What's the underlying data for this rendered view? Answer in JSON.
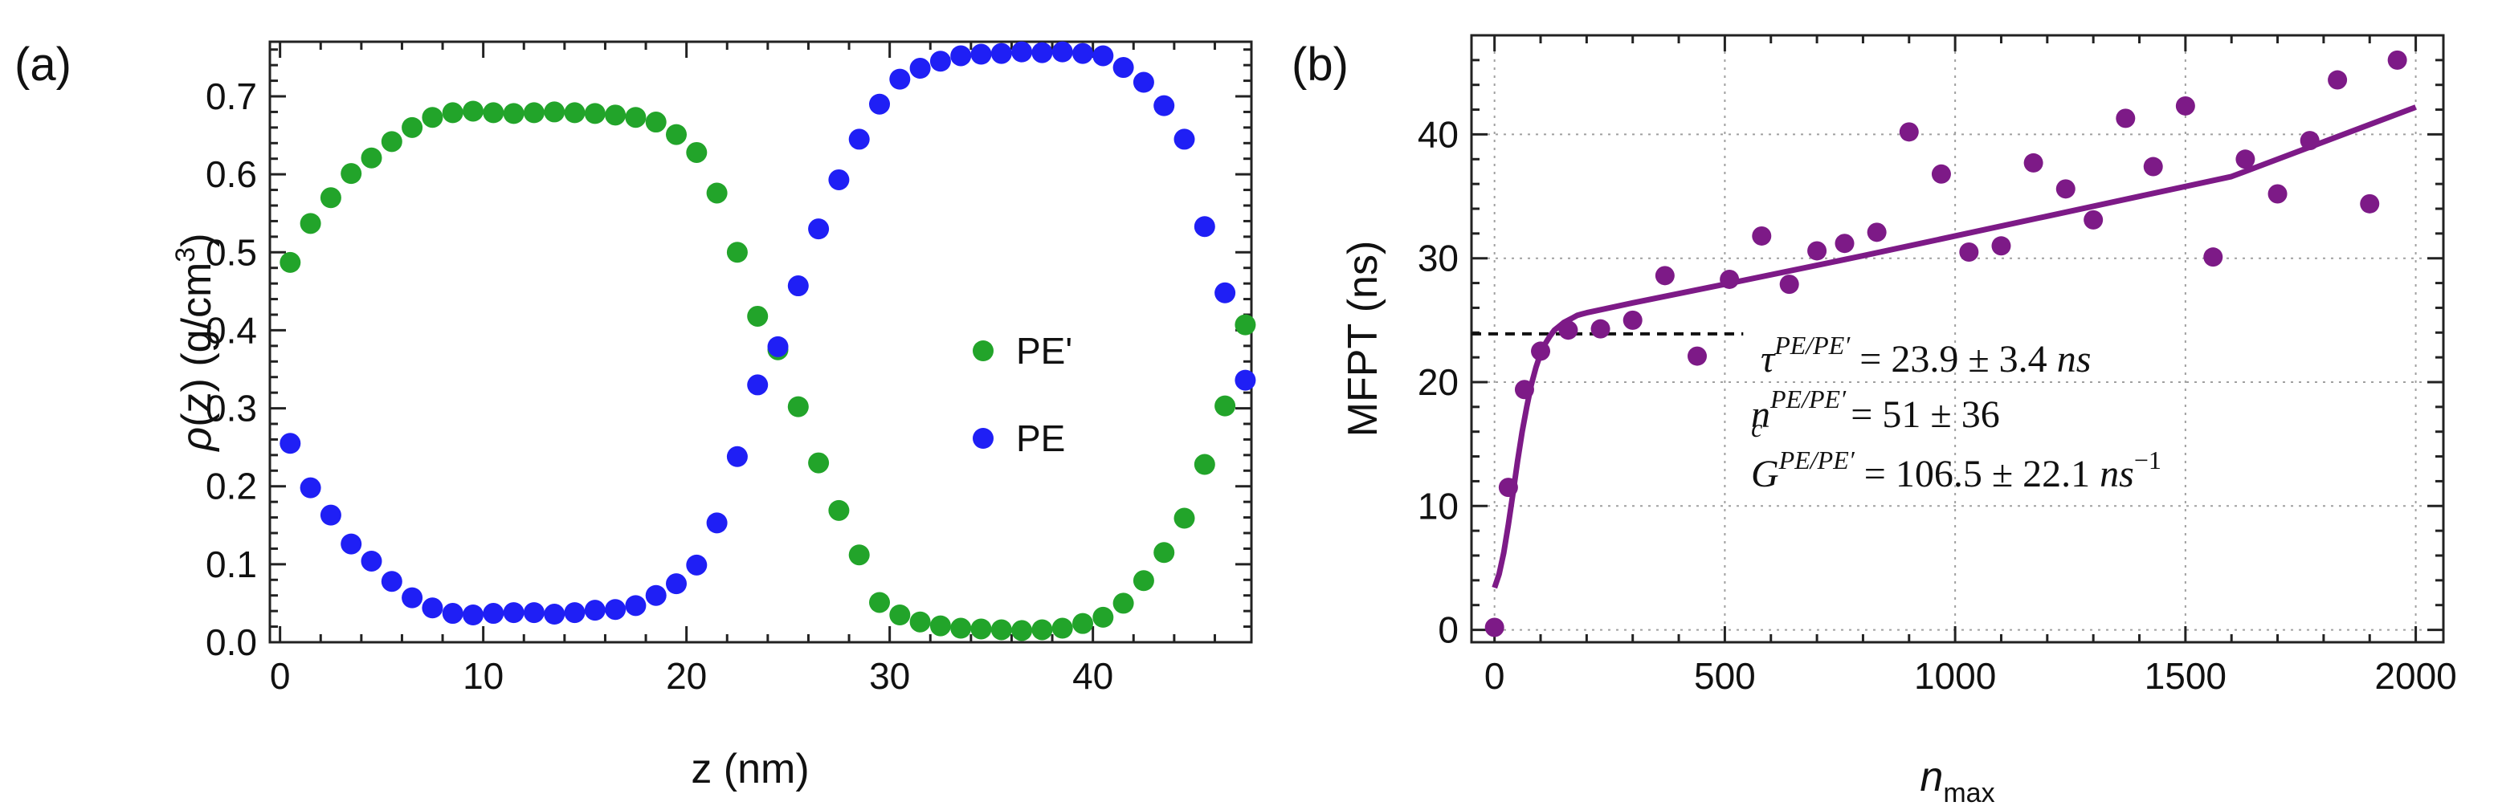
{
  "panels": {
    "a_label": "(a)",
    "b_label": "(b)"
  },
  "colors": {
    "green": "#22a42a",
    "blue": "#1f1ff5",
    "purple": "#7d1a87",
    "axis": "#222222",
    "grid": "#a0a0a0"
  },
  "chart_data": [
    {
      "id": "a",
      "type": "scatter",
      "xlabel": "z (nm)",
      "ylabel": {
        "rho": "ρ",
        "main": "(z) (g/cm",
        "sup": "3",
        "close": ")"
      },
      "xlim": [
        -0.5,
        47.8
      ],
      "ylim": [
        0.0,
        0.77
      ],
      "xticks": [
        0,
        10,
        20,
        30,
        40
      ],
      "yticks": [
        0.0,
        0.1,
        0.2,
        0.3,
        0.4,
        0.5,
        0.6,
        0.7
      ],
      "ytick_labels": [
        "0.0",
        "0.1",
        "0.2",
        "0.3",
        "0.4",
        "0.5",
        "0.6",
        "0.7"
      ],
      "legend": "center-right",
      "series": [
        {
          "name": "PE'",
          "color": "#22a42a",
          "x": [
            0.5,
            1.5,
            2.5,
            3.5,
            4.5,
            5.5,
            6.5,
            7.5,
            8.5,
            9.5,
            10.5,
            11.5,
            12.5,
            13.5,
            14.5,
            15.5,
            16.5,
            17.5,
            18.5,
            19.5,
            20.5,
            21.5,
            22.5,
            23.5,
            24.5,
            25.5,
            26.5,
            27.5,
            28.5,
            29.5,
            30.5,
            31.5,
            32.5,
            33.5,
            34.5,
            35.5,
            36.5,
            37.5,
            38.5,
            39.5,
            40.5,
            41.5,
            42.5,
            43.5,
            44.5,
            45.5,
            46.5,
            47.5
          ],
          "y": [
            0.487,
            0.537,
            0.57,
            0.601,
            0.621,
            0.642,
            0.66,
            0.673,
            0.679,
            0.681,
            0.679,
            0.678,
            0.679,
            0.68,
            0.679,
            0.678,
            0.676,
            0.673,
            0.667,
            0.651,
            0.628,
            0.576,
            0.5,
            0.418,
            0.375,
            0.302,
            0.23,
            0.169,
            0.112,
            0.051,
            0.035,
            0.026,
            0.021,
            0.018,
            0.017,
            0.016,
            0.015,
            0.016,
            0.018,
            0.024,
            0.032,
            0.05,
            0.079,
            0.115,
            0.159,
            0.228,
            0.303,
            0.407
          ]
        },
        {
          "name": "PE",
          "color": "#1f1ff5",
          "x": [
            0.5,
            1.5,
            2.5,
            3.5,
            4.5,
            5.5,
            6.5,
            7.5,
            8.5,
            9.5,
            10.5,
            11.5,
            12.5,
            13.5,
            14.5,
            15.5,
            16.5,
            17.5,
            18.5,
            19.5,
            20.5,
            21.5,
            22.5,
            23.5,
            24.5,
            25.5,
            26.5,
            27.5,
            28.5,
            29.5,
            30.5,
            31.5,
            32.5,
            33.5,
            34.5,
            35.5,
            36.5,
            37.5,
            38.5,
            39.5,
            40.5,
            41.5,
            42.5,
            43.5,
            44.5,
            45.5,
            46.5,
            47.5
          ],
          "y": [
            0.255,
            0.198,
            0.163,
            0.126,
            0.104,
            0.078,
            0.057,
            0.044,
            0.037,
            0.035,
            0.037,
            0.038,
            0.038,
            0.036,
            0.038,
            0.041,
            0.042,
            0.047,
            0.06,
            0.075,
            0.099,
            0.153,
            0.238,
            0.33,
            0.379,
            0.457,
            0.53,
            0.593,
            0.645,
            0.69,
            0.722,
            0.736,
            0.745,
            0.752,
            0.754,
            0.755,
            0.757,
            0.756,
            0.757,
            0.755,
            0.752,
            0.737,
            0.718,
            0.688,
            0.645,
            0.533,
            0.448,
            0.336
          ]
        }
      ]
    },
    {
      "id": "b",
      "type": "scatter",
      "xlabel": {
        "main": "n",
        "sub": "max"
      },
      "ylabel": "MFPT (ns)",
      "xlim": [
        -50,
        2060
      ],
      "ylim": [
        -1,
        48
      ],
      "xticks": [
        0,
        500,
        1000,
        1500,
        2000
      ],
      "yticks": [
        0,
        10,
        20,
        30,
        40
      ],
      "series": [
        {
          "name": "MFPT",
          "color": "#7d1a87",
          "x": [
            0,
            30,
            65,
            100,
            160,
            230,
            300,
            370,
            440,
            510,
            580,
            640,
            700,
            760,
            830,
            900,
            970,
            1030,
            1100,
            1170,
            1240,
            1300,
            1370,
            1430,
            1500,
            1560,
            1630,
            1700,
            1770,
            1830,
            1900,
            1960
          ],
          "y": [
            0.2,
            11.5,
            19.4,
            22.5,
            24.2,
            24.3,
            25.0,
            28.6,
            22.1,
            28.3,
            31.8,
            27.9,
            30.6,
            31.2,
            32.1,
            40.2,
            36.8,
            30.5,
            31.0,
            37.7,
            35.6,
            33.1,
            41.3,
            37.4,
            42.3,
            30.1,
            38.0,
            35.2,
            39.5,
            44.4,
            34.4,
            46.0
          ]
        }
      ],
      "fit": {
        "type": "line",
        "color": "#7d1a87",
        "x": [
          0,
          10,
          20,
          30,
          40,
          50,
          60,
          70,
          80,
          90,
          100,
          110,
          120,
          130,
          140,
          150,
          160,
          170,
          180,
          190,
          200,
          300,
          500,
          800,
          1200,
          1600,
          2000
        ],
        "y": [
          3.4,
          4.5,
          6.2,
          8.5,
          11.0,
          13.6,
          16.0,
          18.0,
          19.8,
          21.2,
          22.3,
          23.1,
          23.7,
          24.2,
          24.5,
          24.8,
          25.0,
          25.2,
          25.4,
          25.5,
          25.6,
          26.4,
          27.9,
          30.2,
          33.4,
          36.6,
          42.2
        ]
      },
      "reference_line": {
        "y": 23.9,
        "x": [
          -50,
          540
        ],
        "style": "dashed"
      },
      "annotations": {
        "tau_lhs": "τ",
        "tau_sup": "PE/PE′",
        "tau_rhs": " = 23.9 ± 3.4 ",
        "tau_unit": "ns",
        "nc_lhs": "n",
        "nc_sub": "c",
        "nc_sup": "PE/PE′",
        "nc_rhs": " = 51 ± 36",
        "g_lhs": "G",
        "g_sup": "PE/PE′",
        "g_rhs": " = 106.5 ± 22.1 ",
        "g_unit": "ns",
        "g_unit_sup": "−1"
      }
    }
  ]
}
